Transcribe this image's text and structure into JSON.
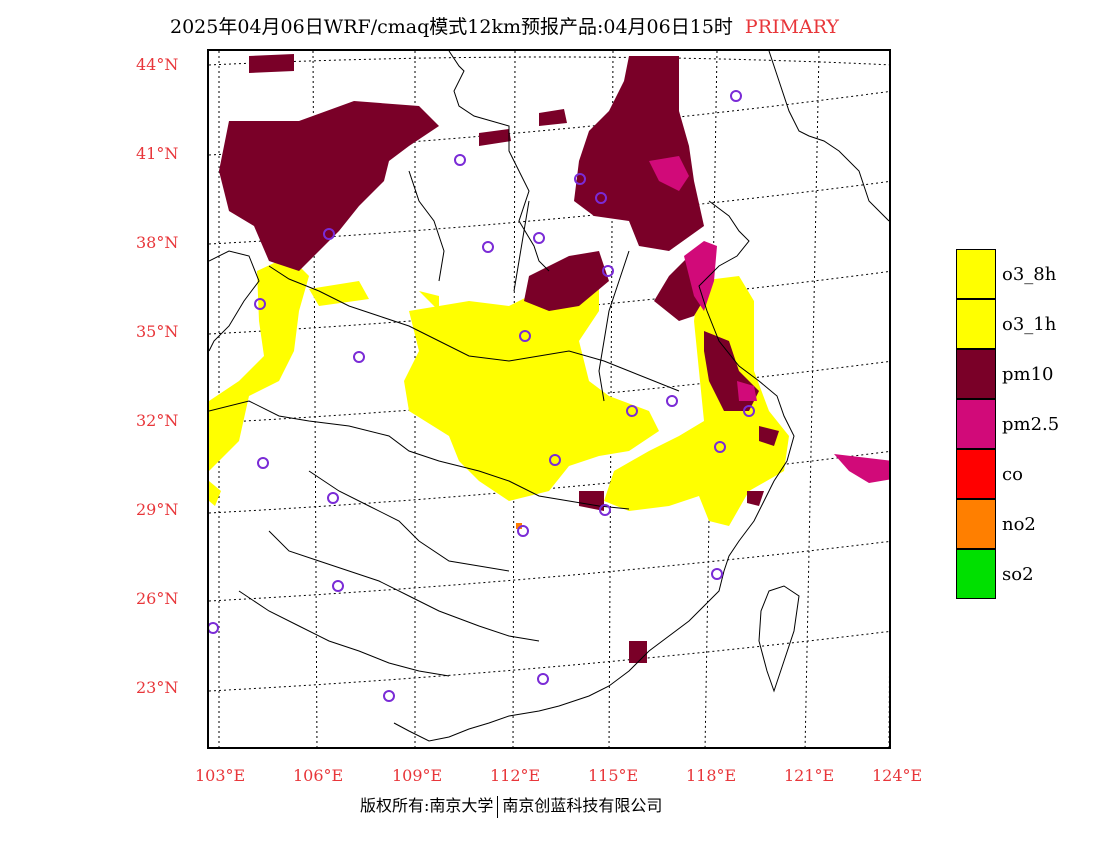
{
  "header": {
    "title": "2025年04月06日WRF/cmaq模式12km预报产品:04月06日15时",
    "tag": "PRIMARY"
  },
  "map": {
    "lat_labels": [
      "44°N",
      "41°N",
      "38°N",
      "35°N",
      "32°N",
      "29°N",
      "26°N",
      "23°N"
    ],
    "lon_labels": [
      "103°E",
      "106°E",
      "109°E",
      "112°E",
      "115°E",
      "118°E",
      "121°E",
      "124°E"
    ]
  },
  "legend": {
    "items": [
      {
        "label": "o3_8h",
        "color": "#ffff00"
      },
      {
        "label": "o3_1h",
        "color": "#ffff00"
      },
      {
        "label": "pm10",
        "color": "#7a0028"
      },
      {
        "label": "pm2.5",
        "color": "#d10a79"
      },
      {
        "label": "co",
        "color": "#ff0000"
      },
      {
        "label": "no2",
        "color": "#ff7f00"
      },
      {
        "label": "so2",
        "color": "#00e000"
      }
    ]
  },
  "footer": {
    "left": "版权所有:南京大学",
    "right": "南京创蓝科技有限公司"
  }
}
